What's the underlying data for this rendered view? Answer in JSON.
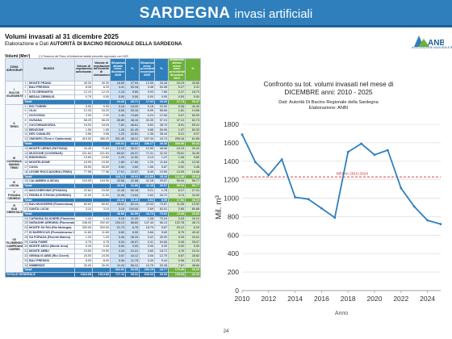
{
  "banner": {
    "title_bold": "SARDEGNA",
    "title_rest": "invasi artificiali"
  },
  "header": {
    "title": "Volumi invasati al 31 dicembre 2025",
    "subtitle_prefix": "Elaborazione e Dati",
    "subtitle_bold": "AUTORITÀ DI BACINO REGIONALE DELLA SARDEGNA"
  },
  "logo": {
    "text": "ANBI",
    "subtext": "ASSOCIAZIONE NAZIONALE BONIFICHE"
  },
  "table": {
    "unit_label": "Volumi (Mm³)",
    "unit_note": "(*) Presenza del Piano di limitazione stabile prescritto approvato con DGR",
    "headers": {
      "zone": "ZONA IDROGRAFICA",
      "invaso": "INVASO",
      "reg": "Volume di regolazione autorizzato",
      "sim": "Volume di regolazione da modello di simulazione",
      "cur": "Situazione attuale mese dicembre 2025",
      "prev": "Situazione mese precedente novembre 2025",
      "old": "Situazione stesso mese anno precedente dicembre 2024",
      "pct": "%"
    },
    "rows": [
      {
        "zone": "I",
        "zone_name": "SULCIS IGLESIENTE",
        "idx": "1",
        "name": "MONTE PRANU",
        "reg": "49.30",
        "sim": "49.30",
        "cur": "18.69",
        "cp": "37.93",
        "prev": "13.06",
        "pp": "26.48",
        "old": "15.19",
        "op": "30.80"
      },
      {
        "idx": "2",
        "name": "BAU PRESSIU",
        "reg": "8.28",
        "sim": "8.29",
        "cur": "4.41",
        "cp": "53.18",
        "prev": "4.48",
        "pp": "54.08",
        "old": "0.27",
        "op": "3.31"
      },
      {
        "idx": "3",
        "name": "S.TA GENNARTA",
        "reg": "12.10",
        "sim": "12.10",
        "cur": "1.16",
        "cp": "9.60",
        "prev": "0.93",
        "pp": "7.66",
        "old": "2.27",
        "op": "18.73"
      },
      {
        "idx": "4",
        "name": "MEDAU ZIRIMILIS",
        "reg": "0.79",
        "sim": "0.00",
        "cur": "0.00",
        "cp": "0.00",
        "prev": "0.00",
        "pp": "0.00",
        "old": "0.00",
        "op": "0.00"
      },
      {
        "total": true,
        "name": "Totali",
        "reg": "",
        "sim": "",
        "cur": "24.26",
        "cp": "35.71",
        "prev": "17.02",
        "pp": "25.20",
        "old": "17.73",
        "op": "26.47"
      },
      {
        "zone": "II",
        "zone_name": "TIRSO",
        "idx": "5",
        "name": "RIO TORREI",
        "reg": "0.90",
        "sim": "0.90",
        "cur": "0.16",
        "cp": "18.00",
        "prev": "0.18",
        "pp": "20.00",
        "old": "0.36",
        "op": "40.45"
      },
      {
        "idx": "6",
        "name": "OLAI",
        "reg": "12.34",
        "sim": "16.20",
        "cur": "6.55",
        "cp": "53.18",
        "prev": "6.99",
        "pp": "56.66",
        "old": "1.81",
        "op": "14.66"
      },
      {
        "idx": "7",
        "name": "GOVOSSAI",
        "reg": "2.00",
        "sim": "2.00",
        "cur": "1.49",
        "cp": "74.60",
        "prev": "0.24",
        "pp": "12.06",
        "old": "0.07",
        "op": "60.00"
      },
      {
        "idx": "8",
        "name": "GUSANA",
        "reg": "58.25",
        "sim": "58.25",
        "cur": "26.89",
        "cp": "46.16",
        "prev": "33.35",
        "pp": "57.24",
        "old": "37.13",
        "op": "63.73"
      },
      {
        "idx": "9",
        "name": "CUCCHINADORZA",
        "reg": "15.00",
        "sim": "18.05",
        "cur": "7.62",
        "cp": "46.61",
        "prev": "5.83",
        "pp": "38.76",
        "old": "8.91",
        "op": "59.41"
      },
      {
        "idx": "10",
        "name": "BENZONE",
        "reg": "1.55",
        "sim": "1.55",
        "cur": "1.26",
        "cp": "81.49",
        "prev": "0.88",
        "pp": "56.96",
        "old": "1.07",
        "op": "69.33"
      },
      {
        "idx": "11",
        "name": "DES CANALES",
        "reg": "3.56",
        "sim": "3.56",
        "cur": "1.20",
        "cp": "33.81",
        "prev": "1.36",
        "pp": "38.44",
        "old": "0.21",
        "op": "6.07"
      },
      {
        "idx": "12",
        "name": "OMODEO (Tirso e Cantoniera)",
        "reg": "419.00",
        "sim": "456.00",
        "cur": "201.40",
        "cp": "48.12",
        "prev": "197.44",
        "pp": "44.74",
        "old": "259.16",
        "op": "61.85"
      },
      {
        "total": true,
        "name": "Totali",
        "reg": "",
        "sim": "",
        "cur": "246.61",
        "cp": "46.84",
        "prev": "236.17",
        "pp": "49.36",
        "old": "308.58",
        "op": "60.44"
      },
      {
        "zone": "III",
        "zone_name": "COGHINAS MANNU TEMO",
        "idx": "13",
        "name": "MONTE LERNO (PATTADA)",
        "reg": "34.45",
        "sim": "71.84",
        "cur": "12.19",
        "cp": "35.37",
        "prev": "12.59",
        "pp": "36.56",
        "old": "10.13",
        "op": "29.43"
      },
      {
        "idx": "14",
        "name": "MUZZONE (COGHINAS)",
        "reg": "221.84",
        "sim": "221.84",
        "cur": "60.62",
        "cp": "26.37",
        "prev": "71.31",
        "pp": "32.03",
        "old": "76.51",
        "op": "34.49"
      },
      {
        "idx": "15",
        "name": "BIDIGHINZU",
        "reg": "10.80",
        "sim": "10.80",
        "cur": "1.29",
        "cp": "11.92",
        "prev": "0.13",
        "pp": "1.22",
        "old": "1.06",
        "op": "9.80"
      },
      {
        "idx": "16",
        "name": "MONTELEONE",
        "reg": "10.90",
        "sim": "10.90",
        "cur": "1.89",
        "cp": "17.50",
        "prev": "1.29",
        "pp": "11.84",
        "old": "1.45",
        "op": "13.30"
      },
      {
        "idx": "17",
        "name": "CUGA",
        "reg": "26.50",
        "sim": "26.50",
        "cur": "0.69",
        "cp": "2.60",
        "prev": "1.56",
        "pp": "5.87",
        "old": "0.92",
        "op": "3.46"
      },
      {
        "idx": "18",
        "name": "LEONE ROCCADORIA (TEMO)",
        "reg": "77.58",
        "sim": "77.58",
        "cur": "17.51",
        "cp": "22.57",
        "prev": "8.45",
        "pp": "10.90",
        "old": "13.09",
        "op": "16.88"
      },
      {
        "total": true,
        "name": "Totali",
        "reg": "",
        "sim": "",
        "cur": "118.71",
        "cp": "29.91",
        "prev": "113.60",
        "pp": "28.19",
        "old": "141.48",
        "op": "35.66"
      },
      {
        "zone": "IV",
        "zone_name": "LISCIA",
        "idx": "19",
        "name": "CALAMBRU (LISCIA)",
        "reg": "104.00",
        "sim": "104.00",
        "cur": "43.56",
        "cp": "41.88",
        "prev": "41.18",
        "pp": "39.57",
        "old": "59.04",
        "op": "56.77"
      },
      {
        "total": true,
        "name": "Totali",
        "reg": "",
        "sim": "",
        "cur": "43.56",
        "cp": "41.88",
        "prev": "41.18",
        "pp": "39.57",
        "old": "59.04",
        "op": "56.77"
      },
      {
        "zone": "V",
        "zone_name": "POSADA CEDRINO",
        "idx": "20",
        "name": "MACCHERONIS (POSADA)",
        "reg": "22.84",
        "sim": "23.50",
        "cur": "11.46",
        "cp": "50.18",
        "prev": "0.21",
        "pp": "1.78",
        "old": "6.17",
        "op": "27.01"
      },
      {
        "idx": "21",
        "name": "PEDRA E OTHONI (CEDRINO)",
        "reg": "11.00",
        "sim": "11.00",
        "cur": "11.98",
        "cp": "74.64",
        "prev": "2.83",
        "pp": "25.72",
        "old": "3.74",
        "op": "34.00"
      },
      {
        "total": true,
        "name": "Totali",
        "reg": "",
        "sim": "",
        "cur": "23.44",
        "cp": "69.29",
        "prev": "3.04",
        "pp": "8.99",
        "old": "17.54",
        "op": "40.19"
      },
      {
        "zone": "VI",
        "zone_name": "SUD ORIENTALE",
        "idx": "22",
        "name": "BAU MUGGERIS (Flumendosa)",
        "reg": "60.62",
        "sim": "60.62",
        "cur": "45.51",
        "cp": "82.14",
        "prev": "42.04",
        "pp": "75.87",
        "old": "11.05",
        "op": "19.92"
      },
      {
        "idx": "23",
        "name": "SANTA LUCIA",
        "reg": "3.10",
        "sim": "3.10",
        "cur": "3.15",
        "cp": "100.00",
        "prev": "2.69",
        "pp": "83.01",
        "old": "2.50",
        "op": "80.68"
      },
      {
        "total": true,
        "name": "Totali",
        "reg": "",
        "sim": "",
        "cur": "48.66",
        "cp": "82.59",
        "prev": "44.73",
        "pp": "75.92",
        "old": "13.55",
        "op": "23.00"
      },
      {
        "zone": "VII",
        "zone_name": "FLUMENDOSA CAMPIDANO CIXERRI",
        "idx": "24",
        "name": "CAPANNA SILICHERI (Fluminimaddu)",
        "reg": "1.44",
        "sim": "1.44",
        "cur": "0.16",
        "cp": "11.25",
        "prev": "1.08",
        "pp": "75.04",
        "old": "0.29",
        "op": "20.10"
      },
      {
        "idx": "25",
        "name": "NURAGHE ARRUBIU (Flumendosa) (*)",
        "reg": "248.00",
        "sim": "292.00",
        "cur": "154.13",
        "cp": "58.60",
        "prev": "147.43",
        "pp": "56.13",
        "old": "122.78",
        "op": "46.74"
      },
      {
        "idx": "26",
        "name": "MONTE SU RAI (Rio Mulargia)",
        "reg": "320.00",
        "sim": "320.00",
        "cur": "21.70",
        "cp": "6.78",
        "prev": "18.79",
        "pp": "5.87",
        "old": "20.12",
        "op": "6.29"
      },
      {
        "idx": "27",
        "name": "IS BARROCUS (Fluminimannu CA)",
        "reg": "11.60",
        "sim": "11.60",
        "cur": "0.80",
        "cp": "6.90",
        "prev": "0.66",
        "pp": "5.69",
        "old": "5.79",
        "op": "49.42"
      },
      {
        "idx": "28",
        "name": "SA FORADA (Flumini Mannu)",
        "reg": "1.20",
        "sim": "1.20",
        "cur": "0.46",
        "cp": "38.33",
        "prev": "0.42",
        "pp": "35.09",
        "old": "0.25",
        "op": "20.51"
      },
      {
        "idx": "29",
        "name": "CASA FUMIE",
        "reg": "0.75",
        "sim": "0.75",
        "cur": "0.34",
        "cp": "45.07",
        "prev": "0.41",
        "pp": "54.66",
        "old": "0.26",
        "op": "35.07"
      },
      {
        "idx": "30",
        "name": "MONTE ARCU (Monte Arca)",
        "reg": "0.40",
        "sim": "0.40",
        "cur": "0.00",
        "cp": "0.00",
        "prev": "0.00",
        "pp": "0.00",
        "old": "0.00",
        "op": "0.00"
      },
      {
        "idx": "31",
        "name": "MONTE ARBU",
        "reg": "19.50",
        "sim": "19.50",
        "cur": "4.33",
        "cp": "22.21",
        "prev": "3.65",
        "pp": "18.72",
        "old": "4.76",
        "op": "24.41"
      },
      {
        "idx": "32",
        "name": "GENNA IS ABIS (Rio Cixerri)",
        "reg": "24.00",
        "sim": "24.00",
        "cur": "3.87",
        "cp": "16.12",
        "prev": "3.06",
        "pp": "12.75",
        "old": "6.87",
        "op": "28.62"
      },
      {
        "idx": "33",
        "name": "BAU PRESSIU",
        "reg": "8.00",
        "sim": "8.00",
        "cur": "0.96",
        "cp": "11.75",
        "prev": "0.45",
        "pp": "5.44",
        "old": "0.98",
        "op": "12.25"
      },
      {
        "idx": "34",
        "name": "SIMBIRIZZI",
        "reg": "30.00",
        "sim": "30.00",
        "cur": "11.34",
        "cp": "56.12",
        "prev": "10.75",
        "pp": "53.38",
        "old": "7.07",
        "op": "38.84"
      },
      {
        "total": true,
        "name": "Totali",
        "reg": "",
        "sim": "",
        "cur": "201.91",
        "cp": "30.55",
        "prev": "190.15",
        "pp": "28.77",
        "old": "173.30",
        "op": "26.22"
      },
      {
        "grand": true,
        "name": "TOTALE GENERALE",
        "reg": "1824.08",
        "sim": "1914.83",
        "cur": "717.11",
        "cp": "39.31",
        "prev": "638.34",
        "pp": "35.00",
        "old": "749.63",
        "op": "41.10"
      }
    ]
  },
  "chart": {
    "title_line1": "Confronto su tot. volumi invasati nel mese di",
    "title_line2": "DICEMBRE anni: 2010 - 2025",
    "sub_line1": "Dati: Autorità Di Bacino Regionale della Sardegna",
    "sub_line2": "Elaborazione: ANBI",
    "mean_label": "MEDIA 2010-2024",
    "xlabel": "Anno",
    "ylabel": "Mil. m³",
    "line_color": "#2f7fbd",
    "mean_color": "#d62728"
  },
  "chart_data": {
    "type": "line",
    "title": "Confronto su tot. volumi invasati nel mese di DICEMBRE anni: 2010 - 2025",
    "xlabel": "Anno",
    "ylabel": "Mil. m³",
    "ylim": [
      0,
      1800
    ],
    "xlim": [
      2010,
      2025
    ],
    "x_ticks": [
      2010,
      2012,
      2014,
      2016,
      2018,
      2020,
      2022,
      2024
    ],
    "y_ticks": [
      0,
      200,
      400,
      600,
      800,
      1000,
      1200,
      1400,
      1600,
      1800
    ],
    "grid": true,
    "x": [
      2010,
      2011,
      2012,
      2013,
      2014,
      2015,
      2016,
      2017,
      2018,
      2019,
      2020,
      2021,
      2022,
      2023,
      2024,
      2025
    ],
    "values": [
      1690,
      1390,
      1250,
      1420,
      1010,
      990,
      890,
      790,
      1500,
      1590,
      1470,
      1520,
      1110,
      910,
      760,
      720
    ],
    "mean_line": {
      "label": "MEDIA 2010-2024",
      "value": 1230
    }
  },
  "footer": {
    "page": "24"
  }
}
